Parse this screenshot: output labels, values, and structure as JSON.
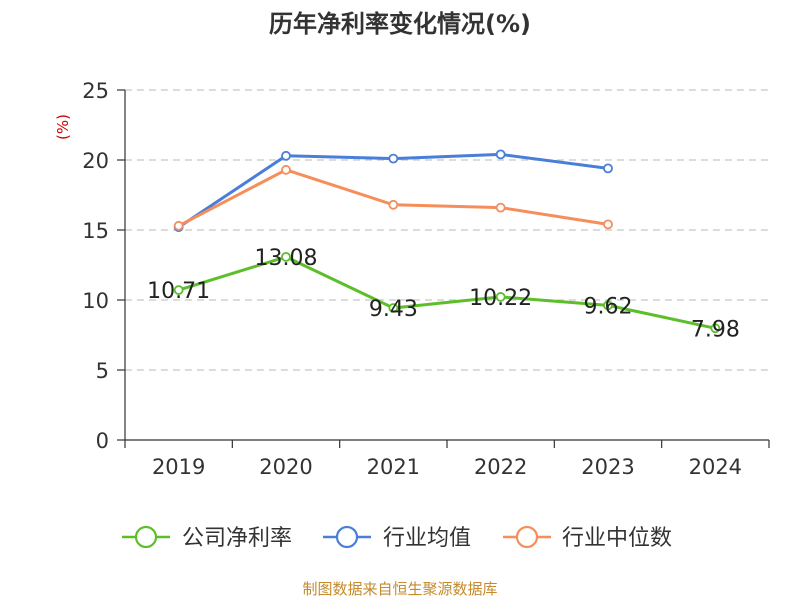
{
  "title": "历年净利率变化情况(%)",
  "source": "制图数据来自恒生聚源数据库",
  "chart_data": {
    "type": "line",
    "title": "历年净利率变化情况(%)",
    "ylabel": "(%)",
    "xlabel": "",
    "categories": [
      "2019",
      "2020",
      "2021",
      "2022",
      "2023",
      "2024"
    ],
    "ylim": [
      0,
      25
    ],
    "yticks": [
      "0",
      "5",
      "10",
      "15",
      "20",
      "25"
    ],
    "grid": true,
    "legend_position": "bottom",
    "series": [
      {
        "name": "公司净利率",
        "color": "#5cbf2a",
        "values": [
          10.71,
          13.08,
          9.43,
          10.22,
          9.62,
          7.98
        ],
        "labels": [
          "10.71",
          "13.08",
          "9.43",
          "10.22",
          "9.62",
          "7.98"
        ]
      },
      {
        "name": "行业均值",
        "color": "#4a7fd9",
        "values": [
          15.2,
          20.3,
          20.1,
          20.4,
          19.4,
          null
        ]
      },
      {
        "name": "行业中位数",
        "color": "#f58e5a",
        "values": [
          15.3,
          19.3,
          16.8,
          16.6,
          15.4,
          null
        ]
      }
    ]
  }
}
